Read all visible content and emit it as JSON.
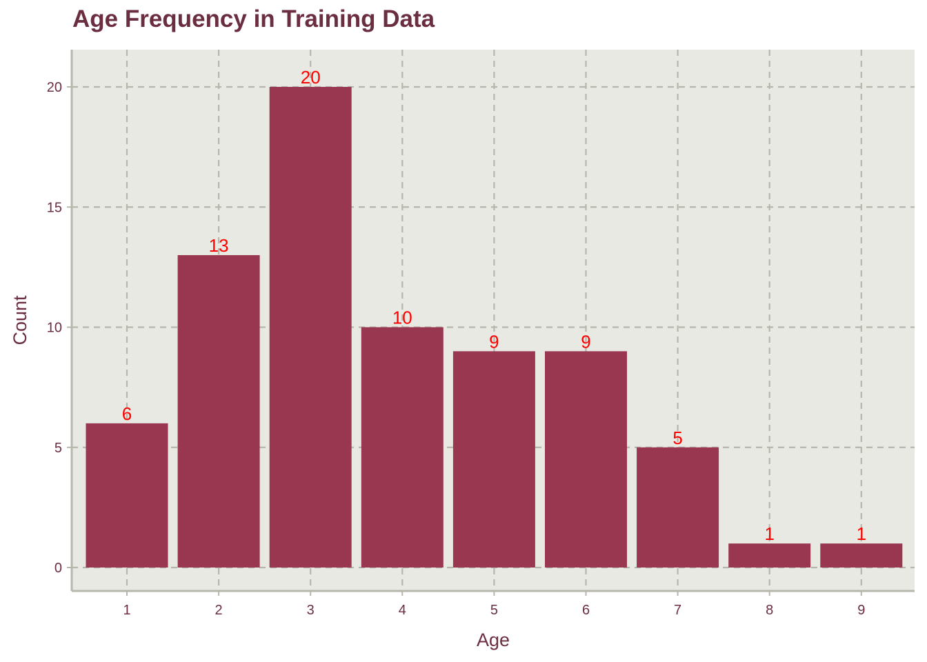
{
  "chart_data": {
    "type": "bar",
    "title": "Age Frequency in Training Data",
    "xlabel": "Age",
    "ylabel": "Count",
    "categories": [
      "1",
      "2",
      "3",
      "4",
      "5",
      "6",
      "7",
      "8",
      "9"
    ],
    "values": [
      6,
      13,
      20,
      10,
      9,
      9,
      5,
      1,
      1
    ],
    "ylim": [
      0,
      20
    ],
    "yticks": [
      0,
      5,
      10,
      15,
      20
    ],
    "grid": true,
    "show_value_labels": true,
    "colors": {
      "bar": "#993750",
      "panel_background": "#e8e9e3",
      "grid": "#b7b6ac",
      "axis": "#b7b6ac",
      "text": "#6b2e40",
      "value_label": "#ff0000"
    }
  }
}
